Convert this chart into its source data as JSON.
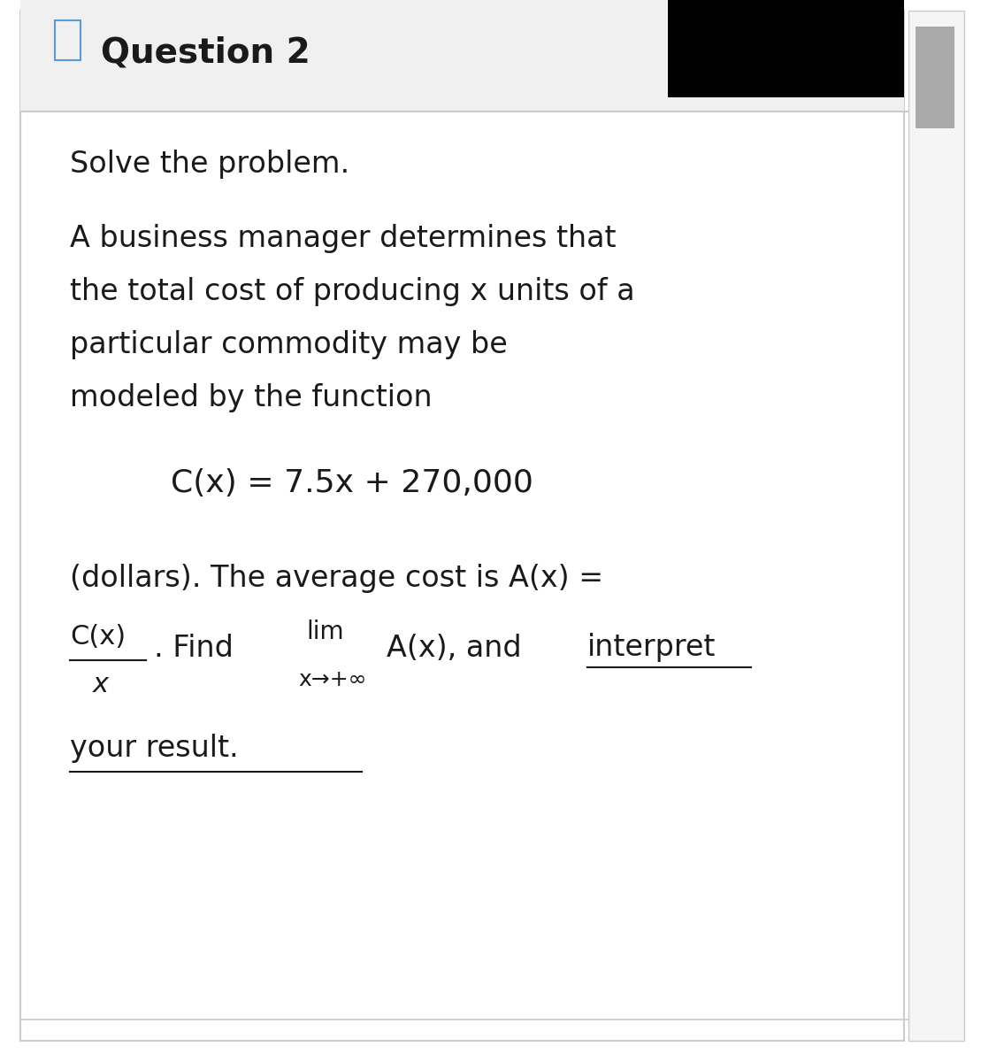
{
  "background_color": "#ffffff",
  "header_bg": "#f0f0f0",
  "header_text": "Question 2",
  "header_fontsize": 28,
  "black_box_color": "#000000",
  "border_color": "#cccccc",
  "line1": "Solve the problem.",
  "line2": "A business manager determines that",
  "line3": "the total cost of producing x units of a",
  "line4": "particular commodity may be",
  "line5": "modeled by the function",
  "line6": "C(x) = 7.5x + 270,000",
  "line7": "(dollars). The average cost is A(x) =",
  "frac_num": "C(x)",
  "frac_den": "x",
  "find_text": ". Find",
  "lim_text": "lim",
  "sub_text": "x→+∞",
  "ax_text": "A(x), and ",
  "interp_text": "interpret",
  "yr_text": "your result.",
  "main_fontsize": 24,
  "text_color": "#1a1a1a"
}
